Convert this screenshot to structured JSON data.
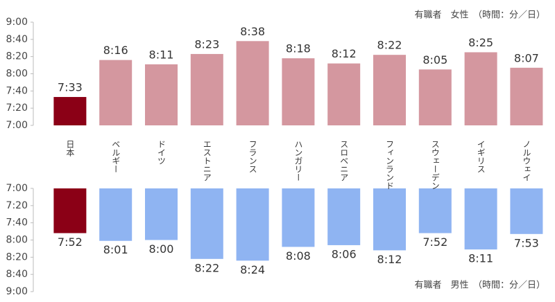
{
  "chart_data": [
    {
      "type": "bar",
      "title": "有職者　女性　（時間：分／日）",
      "categories": [
        "日本",
        "ベルギー",
        "ドイツ",
        "エストニア",
        "フランス",
        "ハンガリー",
        "スロベニア",
        "フィンランド",
        "スウェーデン",
        "イギリス",
        "ノルウェイ"
      ],
      "values": [
        453,
        496,
        491,
        503,
        518,
        498,
        492,
        502,
        485,
        505,
        487
      ],
      "value_labels": [
        "7:33",
        "8:16",
        "8:11",
        "8:23",
        "8:38",
        "8:18",
        "8:12",
        "8:22",
        "8:05",
        "8:25",
        "8:07"
      ],
      "colors": [
        "#8b0016",
        "#d4979f",
        "#d4979f",
        "#d4979f",
        "#d4979f",
        "#d4979f",
        "#d4979f",
        "#d4979f",
        "#d4979f",
        "#d4979f",
        "#d4979f"
      ],
      "ylim": [
        420,
        540
      ],
      "yticks": [
        {
          "value": 420,
          "label": "7:00"
        },
        {
          "value": 440,
          "label": "7:20"
        },
        {
          "value": 460,
          "label": "7:40"
        },
        {
          "value": 480,
          "label": "8:00"
        },
        {
          "value": 500,
          "label": "8:20"
        },
        {
          "value": 520,
          "label": "8:40"
        },
        {
          "value": 540,
          "label": "9:00"
        }
      ],
      "y_inverted": false
    },
    {
      "type": "bar",
      "title": "有職者　男性　（時間：分／日）",
      "values": [
        472,
        481,
        480,
        502,
        504,
        488,
        486,
        492,
        472,
        491,
        473
      ],
      "value_labels": [
        "7:52",
        "8:01",
        "8:00",
        "8:22",
        "8:24",
        "8:08",
        "8:06",
        "8:12",
        "7:52",
        "8:11",
        "7:53"
      ],
      "colors": [
        "#8b0016",
        "#8fb4f2",
        "#8fb4f2",
        "#8fb4f2",
        "#8fb4f2",
        "#8fb4f2",
        "#8fb4f2",
        "#8fb4f2",
        "#8fb4f2",
        "#8fb4f2",
        "#8fb4f2"
      ],
      "ylim": [
        420,
        540
      ],
      "yticks": [
        {
          "value": 420,
          "label": "7:00"
        },
        {
          "value": 440,
          "label": "7:20"
        },
        {
          "value": 460,
          "label": "7:40"
        },
        {
          "value": 480,
          "label": "8:00"
        },
        {
          "value": 500,
          "label": "8:20"
        },
        {
          "value": 520,
          "label": "8:40"
        },
        {
          "value": 540,
          "label": "9:00"
        }
      ],
      "y_inverted": true
    }
  ]
}
